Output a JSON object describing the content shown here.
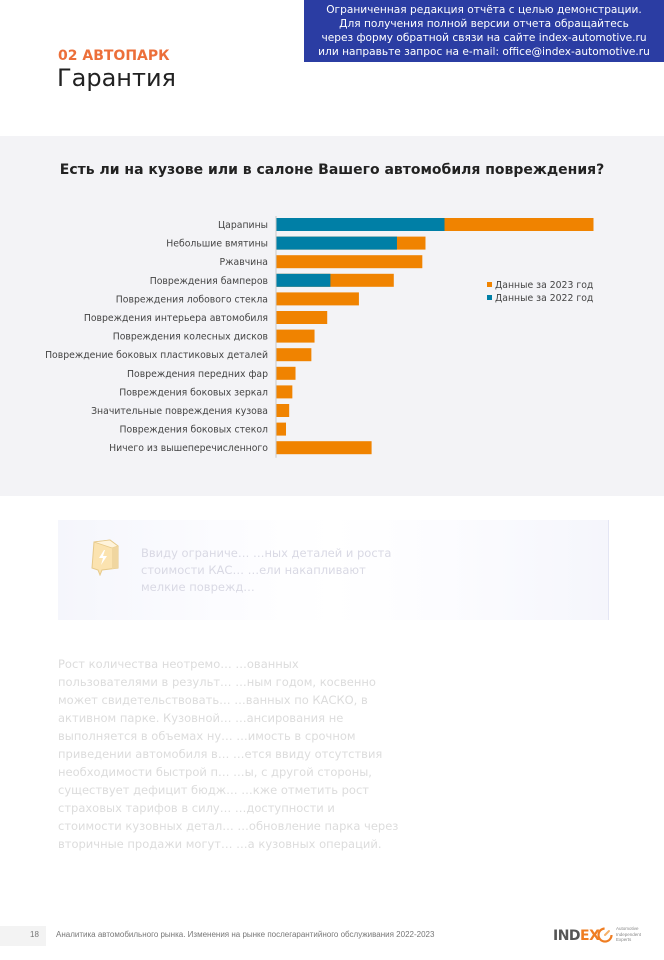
{
  "banner": {
    "lines": [
      "Ограниченная редакция отчёта с целью демонстрации.",
      "Для получения полной версии отчета обращайтесь",
      "через форму обратной связи на сайте index-automotive.ru",
      "или направьте запрос на e-mail: office@index-automotive.ru"
    ]
  },
  "header": {
    "section": "02 АВТОПАРК",
    "title": "Гарантия"
  },
  "colors": {
    "series_2023": "#f08300",
    "series_2022": "#007fa6",
    "accent": "#ec6f3a",
    "banner": "#2b3da3"
  },
  "chart_data": {
    "type": "bar",
    "orientation": "horizontal",
    "title": "Есть ли на кузове или в салоне Вашего автомобиля повреждения?",
    "xlabel": "",
    "ylabel": "",
    "units": "relative share (no axis shown; normalized to largest bar = 100)",
    "xlim": [
      0,
      100
    ],
    "grid": false,
    "legend_position": "right",
    "categories": [
      "Царапины",
      "Небольшие вмятины",
      "Ржавчина",
      "Повреждения бамперов",
      "Повреждения лобового стекла",
      "Повреждения интерьера автомобиля",
      "Повреждения колесных дисков",
      "Повреждение боковых пластиковых деталей",
      "Повреждения передних фар",
      "Повреждения боковых зеркал",
      "Значительные повреждения кузова",
      "Повреждения боковых стекол",
      "Ничего из вышеперечисленного"
    ],
    "series": [
      {
        "name": "Данные за 2023 год",
        "color": "#f08300",
        "values": [
          100,
          47,
          46,
          37,
          26,
          16,
          12,
          11,
          6,
          5,
          4,
          3,
          30
        ]
      },
      {
        "name": "Данные за 2022 год",
        "color": "#007fa6",
        "values": [
          53,
          38,
          null,
          17,
          null,
          null,
          null,
          null,
          null,
          null,
          null,
          null,
          null
        ]
      }
    ]
  },
  "callout": {
    "lines": [
      "Ввиду ограниче…                                   …ных деталей и роста",
      "стоимости КАС…                                    …ели накапливают",
      "мелкие поврежд…"
    ]
  },
  "body": {
    "lines": [
      "Рост количества неотремо…                                   …ованных",
      "пользователями в результ…                                   …ным годом, косвенно",
      "может свидетельствовать…                                    …ванных по КАСКО, в",
      "активном парке. Кузовной…                                   …ансирования не",
      "выполняется в объемах ну…                                   …имость в срочном",
      "приведении автомобиля в…                                    …ется ввиду отсутствия",
      "необходимости быстрой п…                                    …ы, с другой стороны,",
      "существует дефицит бюдж…                                    …кже отметить рост",
      "страховых тарифов в силу…                                   …доступности и",
      "стоимости кузовных детал…                                   …обновление парка через",
      "вторичные продажи могут…                                    …а кузовных операций."
    ]
  },
  "footer": {
    "page_number": "18",
    "text": "Аналитика автомобильного рынка. Изменения на рынке послегарантийного обслуживания 2022-2023",
    "logo_word_left": "IND",
    "logo_word_accent": "EX",
    "logo_tagline": [
      "Automotive",
      "Independent",
      "Experts"
    ]
  }
}
